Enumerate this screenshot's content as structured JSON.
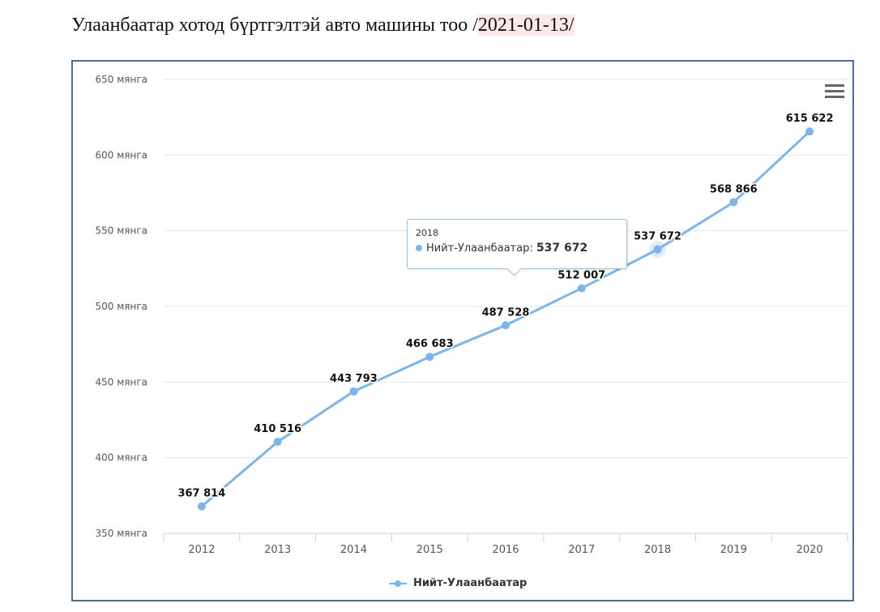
{
  "header": {
    "title_prefix": "Улаанбаатар хотод бүртгэлтэй авто машины тоо /",
    "title_date": "2021-01-13/"
  },
  "menu": {
    "icon": "hamburger-menu-icon"
  },
  "tooltip": {
    "x": "2018",
    "series": "Нийт-Улаанбаатар: ",
    "value": "537 672"
  },
  "legend": {
    "label": "Нийт-Улаанбаатар"
  },
  "colors": {
    "series": "#7cb5ec",
    "frame": "#4a6f96"
  },
  "chart_data": {
    "type": "line",
    "categories": [
      "2012",
      "2013",
      "2014",
      "2015",
      "2016",
      "2017",
      "2018",
      "2019",
      "2020"
    ],
    "series": [
      {
        "name": "Нийт-Улаанбаатар",
        "values": [
          367814,
          410516,
          443793,
          466683,
          487528,
          512007,
          537672,
          568866,
          615622
        ],
        "labels": [
          "367 814",
          "410 516",
          "443 793",
          "466 683",
          "487 528",
          "512 007",
          "537 672",
          "568 866",
          "615 622"
        ]
      }
    ],
    "yticks": [
      350000,
      400000,
      450000,
      500000,
      550000,
      600000,
      650000
    ],
    "ytick_labels": [
      "350 мянга",
      "400 мянга",
      "450 мянга",
      "500 мянга",
      "550 мянга",
      "600 мянга",
      "650 мянга"
    ],
    "ylim": [
      350000,
      650000
    ],
    "highlighted": "2018",
    "grid": "horizontal",
    "legend_position": "bottom-center"
  }
}
